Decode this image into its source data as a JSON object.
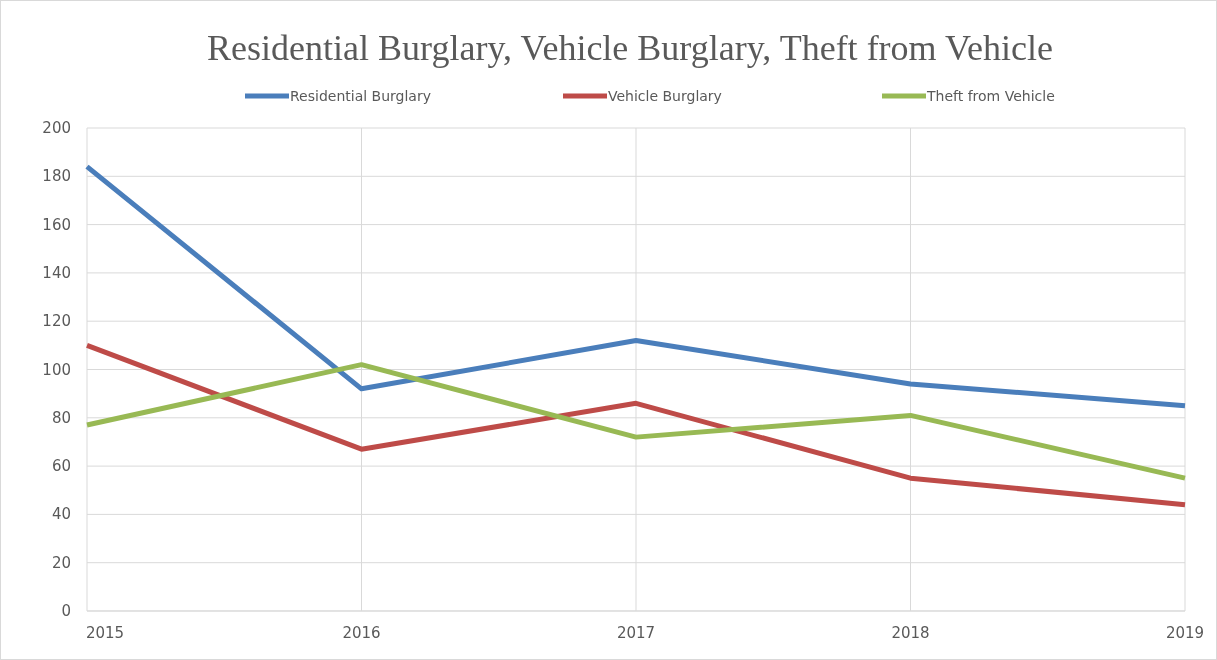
{
  "chart_data": {
    "type": "line",
    "title": "Residential Burglary, Vehicle Burglary, Theft from Vehicle",
    "categories": [
      "2015",
      "2016",
      "2017",
      "2018",
      "2019"
    ],
    "series": [
      {
        "name": "Residential Burglary",
        "color": "#4a7ebb",
        "values": [
          184,
          92,
          112,
          94,
          85
        ]
      },
      {
        "name": "Vehicle Burglary",
        "color": "#be4b48",
        "values": [
          110,
          67,
          86,
          55,
          44
        ]
      },
      {
        "name": "Theft from Vehicle",
        "color": "#98b954",
        "values": [
          77,
          102,
          72,
          81,
          55
        ]
      }
    ],
    "ylim": [
      0,
      200
    ],
    "yticks": [
      0,
      20,
      40,
      60,
      80,
      100,
      120,
      140,
      160,
      180,
      200
    ],
    "grid": true,
    "legend": "top",
    "marker": "none",
    "line_style": "solid"
  }
}
